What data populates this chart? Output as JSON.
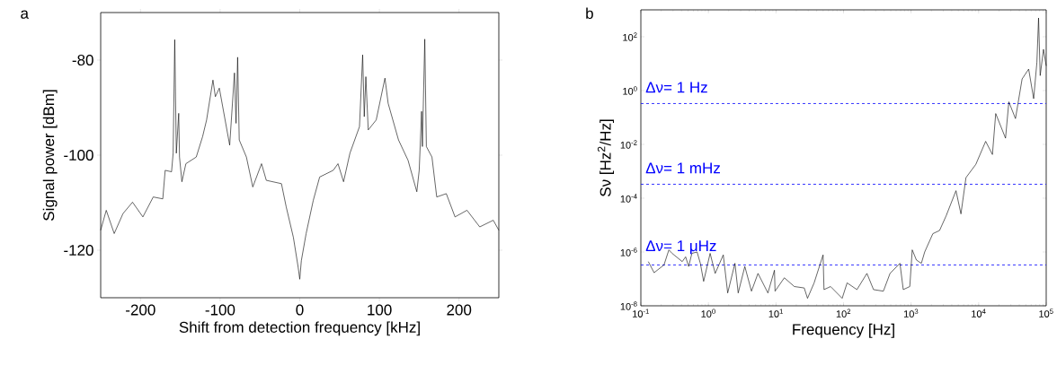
{
  "chart_data": [
    {
      "type": "line",
      "title": "a",
      "xlabel": "Shift from detection frequency [kHz]",
      "ylabel": "Signal power [dBm]",
      "xlim": [
        -250,
        250
      ],
      "ylim": [
        -130,
        -70
      ],
      "xticks": [
        -200,
        -100,
        0,
        100,
        200
      ],
      "yticks": [
        -120,
        -100,
        -80
      ],
      "series": [
        {
          "color": "#000000",
          "x": [
            -250,
            -243,
            -233,
            -222,
            -210,
            -197,
            -184,
            -172,
            -169,
            -161,
            -159,
            -157,
            -155,
            -152,
            -151,
            -148,
            -143,
            -130,
            -122,
            -117,
            -109,
            -106,
            -101,
            -88,
            -82,
            -80,
            -78,
            -76,
            -67,
            -59,
            -48,
            -42,
            -23,
            -17,
            -8,
            -2,
            0,
            2,
            8,
            17,
            25,
            42,
            48,
            55,
            63,
            75,
            79,
            81,
            83,
            86,
            96,
            107,
            111,
            124,
            136,
            147,
            150,
            153,
            154,
            157,
            159,
            166,
            172,
            184,
            195,
            210,
            226,
            243,
            250
          ],
          "values": [
            -115.8,
            -111.6,
            -116.5,
            -112.3,
            -109.9,
            -113.0,
            -108.8,
            -109.2,
            -103.2,
            -103.5,
            -99.6,
            -75.7,
            -99.6,
            -91.2,
            -100.4,
            -105.6,
            -101.8,
            -100.4,
            -96.1,
            -92.6,
            -84.2,
            -87.7,
            -85.9,
            -97.9,
            -82.7,
            -93.3,
            -79.4,
            -96.8,
            -100.4,
            -106.7,
            -101.8,
            -105.3,
            -106.0,
            -110.9,
            -117.3,
            -123.6,
            -126.1,
            -122.2,
            -116.5,
            -109.5,
            -104.6,
            -103.2,
            -101.8,
            -105.6,
            -99.6,
            -94.0,
            -78.9,
            -91.9,
            -83.5,
            -94.7,
            -92.6,
            -83.8,
            -89.1,
            -96.8,
            -101.1,
            -107.7,
            -103.2,
            -90.8,
            -98.2,
            -75.6,
            -98.2,
            -100.4,
            -108.8,
            -108.1,
            -113.0,
            -111.6,
            -115.1,
            -113.7,
            -115.8
          ]
        }
      ]
    },
    {
      "type": "line",
      "title": "b",
      "xlabel": "Frequency [Hz]",
      "ylabel": "Sν [Hz$^{2}$/Hz]",
      "log": "xy",
      "xlim": [
        0.1,
        100000
      ],
      "ylim": [
        1e-08,
        1000
      ],
      "xticks": [
        {
          "value": 0.1,
          "label": "10$^{-1}$"
        },
        {
          "value": 1,
          "label": "10$^{0}$"
        },
        {
          "value": 10,
          "label": "10$^{1}$"
        },
        {
          "value": 100,
          "label": "10$^{2}$"
        },
        {
          "value": 1000,
          "label": "10$^{3}$"
        },
        {
          "value": 10000,
          "label": "10$^{4}$"
        },
        {
          "value": 100000,
          "label": "10$^{5}$"
        }
      ],
      "yticks": [
        {
          "value": 1e-08,
          "label": "10$^{-8}$"
        },
        {
          "value": 1e-06,
          "label": "10$^{-6}$"
        },
        {
          "value": 0.0001,
          "label": "10$^{-4}$"
        },
        {
          "value": 0.01,
          "label": "10$^{-2}$"
        },
        {
          "value": 1,
          "label": "10$^{0}$"
        },
        {
          "value": 100,
          "label": "10$^{2}$"
        }
      ],
      "ref_lines": [
        {
          "axis": "y",
          "value": 0.33,
          "color": "#0000ff",
          "line_style": "dashed"
        },
        {
          "axis": "y",
          "value": 0.00033,
          "color": "#0000ff",
          "line_style": "dashed"
        },
        {
          "axis": "y",
          "value": 3.3e-07,
          "color": "#0000ff",
          "line_style": "dashed"
        }
      ],
      "annotations": [
        {
          "text": "Δν= 1 Hz",
          "y": 0.33
        },
        {
          "text": "Δν= 1 mHz",
          "y": 0.00033
        },
        {
          "text": "Δν= 1 μHz",
          "y": 3.3e-07
        }
      ],
      "series": [
        {
          "color": "#000000",
          "x": [
            0.129,
            0.157,
            0.22,
            0.26,
            0.29,
            0.41,
            0.46,
            0.51,
            0.57,
            0.68,
            0.76,
            0.85,
            1.06,
            1.26,
            1.66,
            1.93,
            2.47,
            2.76,
            3.46,
            4.34,
            5.42,
            7.6,
            9.5,
            9.7,
            13.3,
            18.7,
            26.2,
            29.3,
            36.7,
            49.8,
            51.4,
            64.4,
            95.5,
            113,
            158,
            222,
            278,
            389,
            488,
            684,
            766,
            957,
            1040,
            1200,
            1420,
            1590,
            2100,
            2640,
            3300,
            4620,
            5470,
            6490,
            9080,
            12700,
            16000,
            17900,
            25000,
            28000,
            35100,
            44000,
            55000,
            65200,
            72800,
            77100,
            81500,
            91200,
            100000
          ],
          "values": [
            4.4e-07,
            1.7e-07,
            3.3e-07,
            1.2e-06,
            8.9e-07,
            4.4e-07,
            6.6e-07,
            2.9e-07,
            8.9e-07,
            1e-06,
            3.8e-07,
            8.1e-08,
            8.9e-07,
            1.6e-07,
            7.8e-07,
            3e-08,
            3.8e-07,
            3e-08,
            2.9e-07,
            3.5e-08,
            1.6e-07,
            3e-08,
            2.1e-07,
            3.5e-08,
            1.1e-07,
            5.2e-08,
            4.6e-08,
            1.9e-08,
            7.1e-08,
            7.8e-07,
            4e-08,
            5.2e-08,
            1.9e-08,
            7.1e-08,
            4e-08,
            1.6e-07,
            4e-08,
            3.5e-08,
            1.6e-07,
            3.8e-07,
            4e-08,
            5.2e-08,
            1.2e-06,
            5e-07,
            3.8e-07,
            1e-06,
            4.8e-06,
            6.3e-06,
            2.2e-05,
            0.00019,
            2.6e-05,
            0.00058,
            0.0018,
            0.013,
            0.0042,
            0.14,
            0.017,
            0.38,
            0.091,
            2.7,
            6.3,
            0.5,
            11,
            500,
            3.6,
            34,
            8.3
          ]
        }
      ]
    }
  ]
}
